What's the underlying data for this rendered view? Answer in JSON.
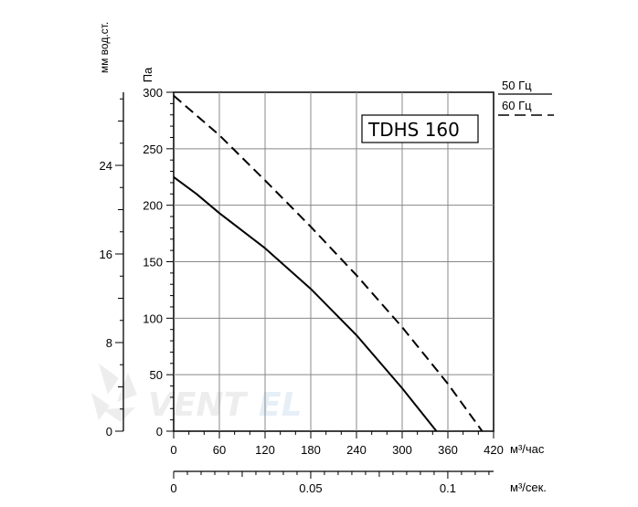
{
  "chart_data": {
    "type": "line",
    "model": "TDHS 160",
    "x_axis": {
      "unit": "м³/час",
      "ticks": [
        0,
        60,
        120,
        180,
        240,
        300,
        360,
        420
      ],
      "range": [
        0,
        420
      ]
    },
    "x2_axis": {
      "unit": "м³/сек.",
      "ticks": [
        "0",
        "0.05",
        "0.1"
      ],
      "tick_values": [
        0,
        0.05,
        0.1
      ],
      "range": [
        0,
        0.1167
      ]
    },
    "y_axis": {
      "unit": "Па",
      "ticks": [
        0,
        50,
        100,
        150,
        200,
        250,
        300
      ],
      "range": [
        0,
        300
      ]
    },
    "y2_axis": {
      "unit": "мм вод.ст.",
      "ticks": [
        0,
        8,
        16,
        24
      ],
      "range": [
        0,
        30.6
      ]
    },
    "grid": true,
    "legend_position": "top-right",
    "series": [
      {
        "name": "50 Гц",
        "style": "solid",
        "color": "#000000",
        "x": [
          0,
          30,
          60,
          120,
          180,
          240,
          300,
          345
        ],
        "y": [
          225,
          210,
          193,
          162,
          126,
          85,
          38,
          0
        ]
      },
      {
        "name": "60 Гц",
        "style": "dashed",
        "color": "#000000",
        "x": [
          0,
          60,
          120,
          180,
          240,
          300,
          360,
          405
        ],
        "y": [
          297,
          262,
          222,
          181,
          138,
          92,
          42,
          0
        ]
      }
    ]
  },
  "watermark": {
    "text": "VENTEL",
    "colors": [
      "#e5e5e5",
      "#d6e6f2"
    ]
  }
}
